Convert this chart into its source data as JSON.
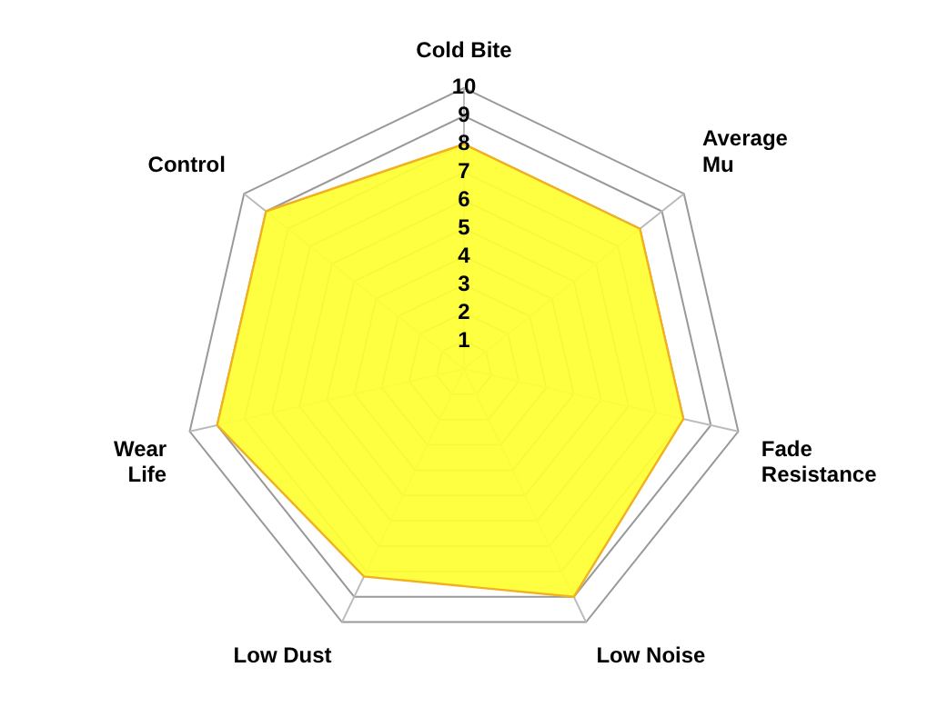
{
  "chart_data": {
    "type": "radar",
    "categories": [
      "Cold Bite",
      "Average Mu",
      "Fade Resistance",
      "Low Noise",
      "Low Dust",
      "Wear Life",
      "Control"
    ],
    "series": [
      {
        "color": "#ffff33",
        "values": [
          8,
          8,
          8,
          9,
          8.2,
          9,
          9
        ]
      }
    ],
    "ylim": [
      0,
      10
    ],
    "yticks": [
      1,
      2,
      3,
      4,
      5,
      6,
      7,
      8,
      9,
      10
    ],
    "grid": true,
    "legend": false,
    "marker": "none"
  }
}
